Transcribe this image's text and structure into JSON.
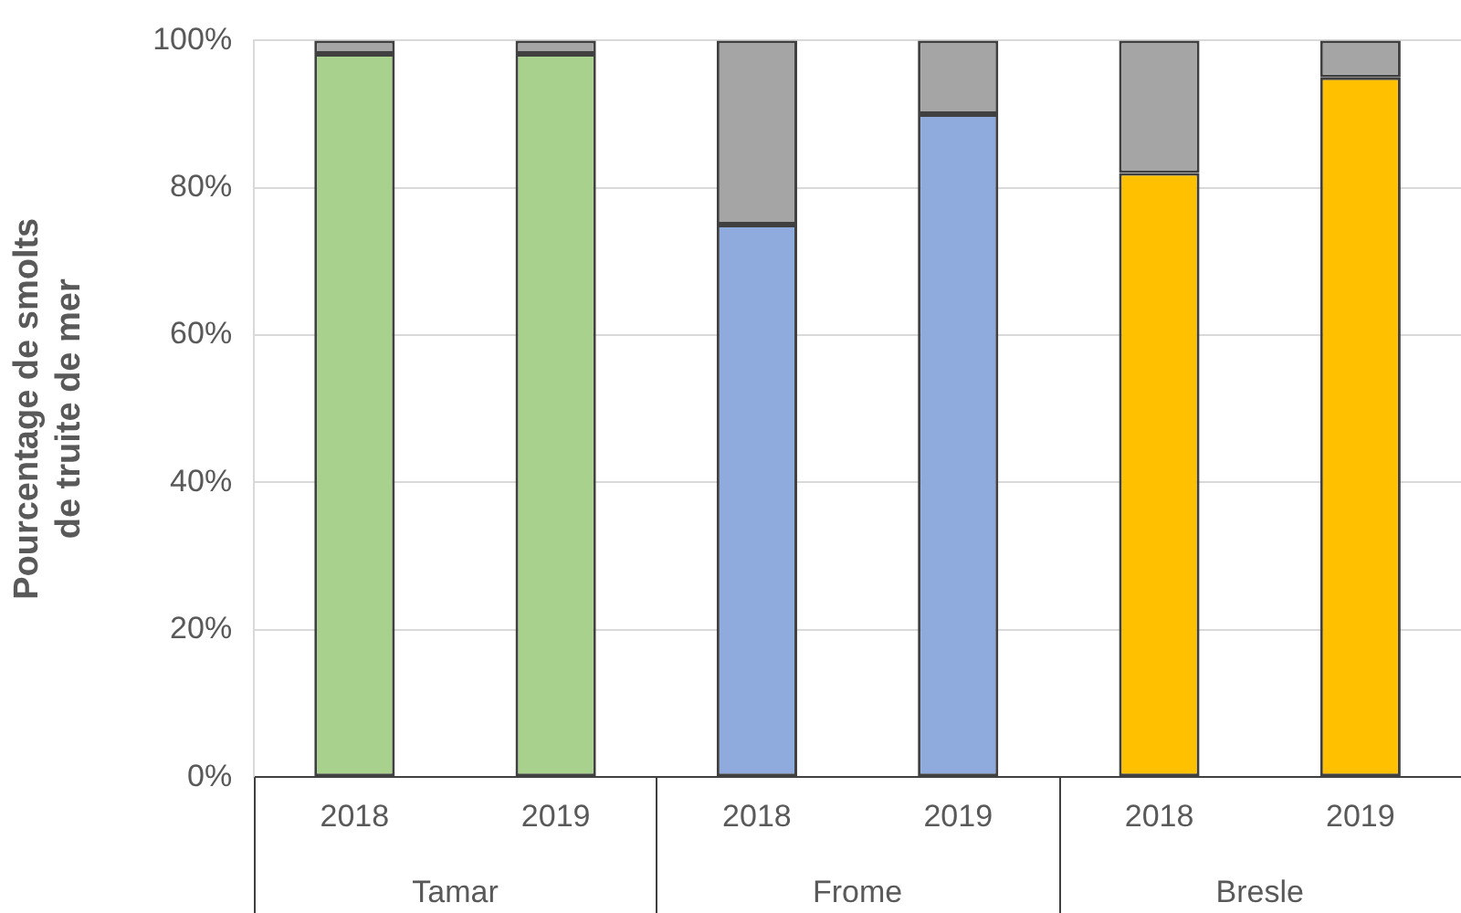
{
  "chart_data": {
    "type": "bar",
    "stacked": true,
    "ylabel": "Pourcentage de smolts de truite de mer",
    "categories": [
      "2018",
      "2019",
      "2018",
      "2019",
      "2018",
      "2019"
    ],
    "series": [
      {
        "colors": [
          "#a9d18e",
          "#a9d18e",
          "#8faadc",
          "#8faadc",
          "#ffc000",
          "#ffc000"
        ],
        "values": [
          98.2,
          98.2,
          75,
          90,
          82,
          95
        ]
      },
      {
        "color": "#a5a5a5",
        "values": [
          1.8,
          1.8,
          25,
          10,
          18,
          5
        ]
      }
    ],
    "ylim": [
      0,
      100
    ],
    "yticks": [
      {
        "value": 0,
        "label": "0%"
      },
      {
        "value": 20,
        "label": "20%"
      },
      {
        "value": 40,
        "label": "40%"
      },
      {
        "value": 60,
        "label": "60%"
      },
      {
        "value": 80,
        "label": "80%"
      },
      {
        "value": 100,
        "label": "100%"
      }
    ],
    "grid": "y",
    "legend": false,
    "annotations": [
      "Tamar",
      "Frome",
      "Bresle"
    ]
  }
}
